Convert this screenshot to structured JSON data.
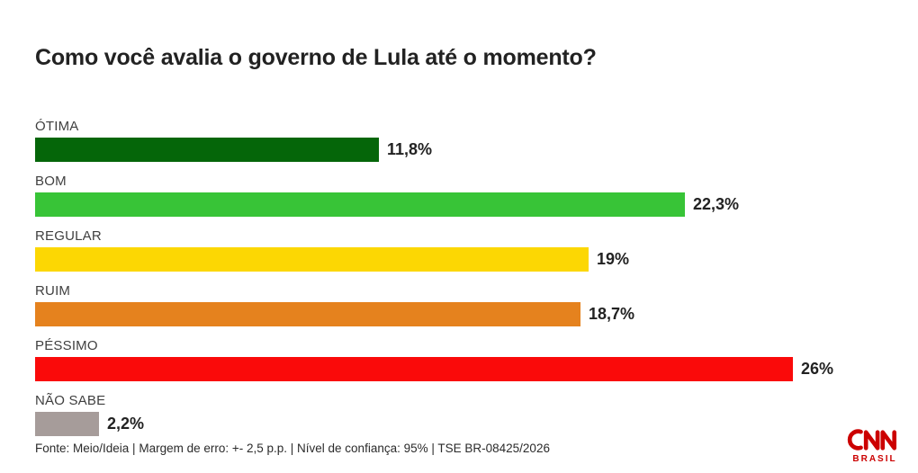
{
  "title": "Como você avalia o governo de Lula até o momento?",
  "chart_data": {
    "type": "bar",
    "orientation": "horizontal",
    "title": "Como você avalia o governo de Lula até o momento?",
    "categories": [
      "ÓTIMA",
      "BOM",
      "REGULAR",
      "RUIM",
      "PÉSSIMO",
      "NÃO SABE"
    ],
    "values": [
      11.8,
      22.3,
      19,
      18.7,
      26,
      2.2
    ],
    "value_labels": [
      "11,8%",
      "22,3%",
      "19%",
      "18,7%",
      "26%",
      "2,2%"
    ],
    "bar_colors": [
      "#056609",
      "#38c437",
      "#fcd703",
      "#e5821e",
      "#fa0a0a",
      "#a69c9a"
    ],
    "xlim": [
      0,
      26
    ],
    "grid": false,
    "legend": false,
    "unit": "%"
  },
  "footer": {
    "source_line": "Fonte: Meio/Ideia | Margem de erro: +- 2,5 p.p. | Nível de confiança: 95% | TSE BR-08425/2026"
  },
  "branding": {
    "logo_text": "CNN",
    "logo_subtext": "BRASIL",
    "logo_color": "#cc0000"
  }
}
